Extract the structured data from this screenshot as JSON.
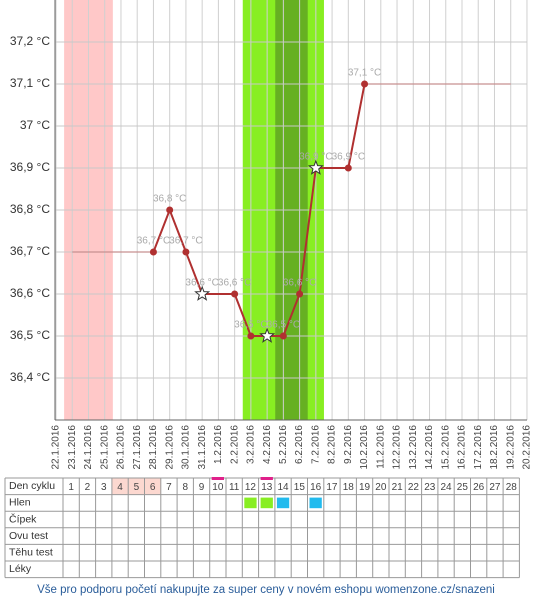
{
  "chart_data": {
    "type": "line",
    "categories": [
      "22.1.2016",
      "23.1.2016",
      "24.1.2016",
      "25.1.2016",
      "26.1.2016",
      "27.1.2016",
      "28.1.2016",
      "29.1.2016",
      "30.1.2016",
      "31.1.2016",
      "1.2.2016",
      "2.2.2016",
      "3.2.2016",
      "4.2.2016",
      "5.2.2016",
      "6.2.2016",
      "7.2.2016",
      "8.2.2016",
      "9.2.2016",
      "10.2.2016",
      "11.2.2016",
      "12.2.2016",
      "13.2.2016",
      "14.2.2016",
      "15.2.2016",
      "16.2.2016",
      "17.2.2016",
      "18.2.2016",
      "19.2.2016",
      "20.2.2016"
    ],
    "ylim": [
      36.3,
      37.3
    ],
    "yticks": [
      {
        "value": 36.4,
        "label": "36,4 °C"
      },
      {
        "value": 36.5,
        "label": "36,5 °C"
      },
      {
        "value": 36.6,
        "label": "36,6 °C"
      },
      {
        "value": 36.7,
        "label": "36,7 °C"
      },
      {
        "value": 36.8,
        "label": "36,8 °C"
      },
      {
        "value": 36.9,
        "label": "36,9 °C"
      },
      {
        "value": 37.0,
        "label": "37 °C"
      },
      {
        "value": 37.1,
        "label": "37,1 °C"
      },
      {
        "value": 37.2,
        "label": "37,2 °C"
      }
    ],
    "grid": true,
    "bands": [
      {
        "from": "23.1.2016",
        "to": "25.1.2016",
        "color": "#ffc8c8"
      },
      {
        "from": "3.2.2016",
        "to": "7.2.2016",
        "color": "#88ee22"
      },
      {
        "from": "5.2.2016",
        "to": "6.2.2016",
        "color": "#66b022"
      }
    ],
    "reference_lines": [
      {
        "from": "23.1.2016",
        "to": "28.1.2016",
        "value": 36.7,
        "color": "#c89090"
      },
      {
        "from": "10.2.2016",
        "to": "19.2.2016",
        "value": 37.1,
        "color": "#c89090"
      }
    ],
    "series": [
      {
        "color": "#b03030",
        "x": [
          "28.1.2016",
          "29.1.2016",
          "30.1.2016",
          "31.1.2016",
          "2.2.2016",
          "3.2.2016",
          "4.2.2016",
          "5.2.2016",
          "6.2.2016",
          "7.2.2016",
          "9.2.2016",
          "10.2.2016"
        ],
        "values": [
          36.7,
          36.8,
          36.7,
          36.6,
          36.6,
          36.5,
          36.5,
          36.5,
          36.6,
          36.9,
          36.9,
          37.1
        ],
        "markers": [
          "dot",
          "dot",
          "dot",
          "star",
          "dot",
          "dot",
          "star",
          "dot",
          "dot",
          "star",
          "dot",
          "dot"
        ],
        "value_labels": [
          "36,7 °C",
          "36,8 °C",
          "36,7 °C",
          "36,6 °C",
          "36,6 °C",
          "36,5 °C",
          null,
          "36,5 °C",
          "36,6 °C",
          "36,9 °C",
          "36,9 °C",
          "37,1 °C"
        ]
      }
    ]
  },
  "cycle_table": {
    "row_labels": [
      "Den cyklu",
      "Hlen",
      "Čípek",
      "Ovu test",
      "Těhu test",
      "Léky"
    ],
    "days": [
      1,
      2,
      3,
      4,
      5,
      6,
      7,
      8,
      9,
      10,
      11,
      12,
      13,
      14,
      15,
      16,
      17,
      18,
      19,
      20,
      21,
      22,
      23,
      24,
      25,
      26,
      27,
      28
    ],
    "pink_days": [
      4,
      5,
      6
    ],
    "marked_days": [
      10,
      13
    ],
    "hlen": [
      {
        "day": 12,
        "color": "#88ee22"
      },
      {
        "day": 13,
        "color": "#88ee22"
      },
      {
        "day": 14,
        "color": "#22bbee"
      },
      {
        "day": 16,
        "color": "#22bbee"
      }
    ]
  },
  "footer": "Vše pro podporu početí nakupujte za super ceny v novém eshopu womenzone.cz/snazeni"
}
